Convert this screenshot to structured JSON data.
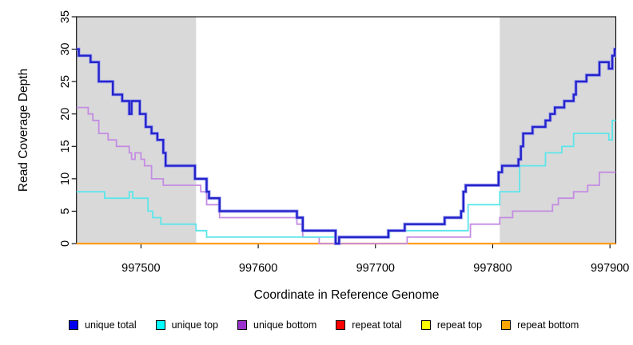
{
  "chart_data": {
    "type": "line",
    "subtype": "step",
    "title": "",
    "xlabel": "Coordinate in Reference Genome",
    "ylabel": "Read Coverage Depth",
    "xlim": [
      997445,
      997905
    ],
    "ylim": [
      0,
      35
    ],
    "x_ticks": [
      997500,
      997600,
      997700,
      997800,
      997900
    ],
    "y_ticks": [
      0,
      5,
      10,
      15,
      20,
      25,
      30,
      35
    ],
    "grid": false,
    "axis_color": "#000000",
    "plot_bg": "#ffffff",
    "shaded_regions": [
      {
        "name": "repeat-region-left",
        "x0": 997445,
        "x1": 997547,
        "color": "#d9d9d9"
      },
      {
        "name": "repeat-region-right",
        "x0": 997806,
        "x1": 997905,
        "color": "#d9d9d9"
      }
    ],
    "series": [
      {
        "name": "repeat total",
        "color": "#ff0000",
        "width": 1.6,
        "points": [
          [
            997445,
            0
          ]
        ]
      },
      {
        "name": "repeat top",
        "color": "#ffff00",
        "width": 1.6,
        "points": [
          [
            997445,
            0
          ]
        ]
      },
      {
        "name": "repeat bottom",
        "color": "#ff9d1d",
        "width": 2.2,
        "points": [
          [
            997445,
            0
          ]
        ]
      },
      {
        "name": "unique bottom",
        "color": "#c48ce2",
        "width": 1.8,
        "points": [
          [
            997445,
            21
          ],
          [
            997455,
            20
          ],
          [
            997459,
            19
          ],
          [
            997464,
            17
          ],
          [
            997472,
            16
          ],
          [
            997479,
            15
          ],
          [
            997490,
            14
          ],
          [
            997492,
            13
          ],
          [
            997495,
            14
          ],
          [
            997500,
            13
          ],
          [
            997503,
            12
          ],
          [
            997509,
            10
          ],
          [
            997519,
            9
          ],
          [
            997551,
            8
          ],
          [
            997556,
            6
          ],
          [
            997567,
            4
          ],
          [
            997633,
            3
          ],
          [
            997638,
            1
          ],
          [
            997652,
            0
          ],
          [
            997727,
            1
          ],
          [
            997781,
            3
          ],
          [
            997806,
            4
          ],
          [
            997817,
            5
          ],
          [
            997851,
            6
          ],
          [
            997856,
            7
          ],
          [
            997869,
            8
          ],
          [
            997881,
            9
          ],
          [
            997891,
            11
          ]
        ]
      },
      {
        "name": "unique top",
        "color": "#5ce6ea",
        "width": 1.8,
        "points": [
          [
            997445,
            8
          ],
          [
            997469,
            7
          ],
          [
            997490,
            8
          ],
          [
            997493,
            7
          ],
          [
            997506,
            5
          ],
          [
            997510,
            4
          ],
          [
            997517,
            3
          ],
          [
            997547,
            2
          ],
          [
            997556,
            1
          ],
          [
            997666,
            0
          ],
          [
            997669,
            1
          ],
          [
            997712,
            2
          ],
          [
            997779,
            6
          ],
          [
            997806,
            8
          ],
          [
            997823,
            12
          ],
          [
            997845,
            14
          ],
          [
            997859,
            15
          ],
          [
            997869,
            17
          ],
          [
            997899,
            16
          ],
          [
            997902,
            19
          ]
        ]
      },
      {
        "name": "unique total",
        "color": "#2323cc",
        "width": 2.4,
        "halo": "#9b9bf0",
        "halo_width": 4.2,
        "points": [
          [
            997445,
            30
          ],
          [
            997447,
            29
          ],
          [
            997457,
            28
          ],
          [
            997464,
            25
          ],
          [
            997476,
            23
          ],
          [
            997484,
            22
          ],
          [
            997490,
            20
          ],
          [
            997492,
            22
          ],
          [
            997499,
            20
          ],
          [
            997504,
            18
          ],
          [
            997509,
            17
          ],
          [
            997514,
            16
          ],
          [
            997519,
            14
          ],
          [
            997521,
            12
          ],
          [
            997546,
            10
          ],
          [
            997556,
            8
          ],
          [
            997558,
            7
          ],
          [
            997567,
            5
          ],
          [
            997633,
            4
          ],
          [
            997638,
            2
          ],
          [
            997666,
            0
          ],
          [
            997669,
            1
          ],
          [
            997711,
            2
          ],
          [
            997725,
            3
          ],
          [
            997759,
            4
          ],
          [
            997773,
            5
          ],
          [
            997775,
            8
          ],
          [
            997777,
            9
          ],
          [
            997805,
            11
          ],
          [
            997808,
            12
          ],
          [
            997822,
            13
          ],
          [
            997824,
            15
          ],
          [
            997826,
            17
          ],
          [
            997834,
            18
          ],
          [
            997845,
            19
          ],
          [
            997849,
            20
          ],
          [
            997853,
            21
          ],
          [
            997861,
            22
          ],
          [
            997869,
            23
          ],
          [
            997871,
            25
          ],
          [
            997880,
            26
          ],
          [
            997891,
            28
          ],
          [
            997899,
            27
          ],
          [
            997902,
            29
          ],
          [
            997904,
            30
          ]
        ]
      }
    ],
    "legend": {
      "position": "bottom",
      "entries": [
        {
          "label": "unique total",
          "color": "#0000ee"
        },
        {
          "label": "unique top",
          "color": "#00ffff"
        },
        {
          "label": "unique bottom",
          "color": "#9a32cd"
        },
        {
          "label": "repeat total",
          "color": "#ff0000"
        },
        {
          "label": "repeat top",
          "color": "#ffff00"
        },
        {
          "label": "repeat bottom",
          "color": "#ffa500"
        }
      ]
    }
  }
}
